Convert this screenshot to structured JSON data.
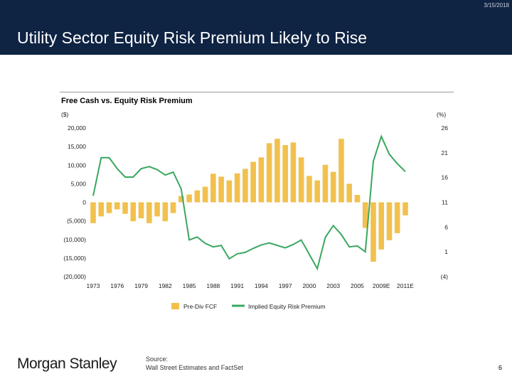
{
  "header": {
    "date": "3/15/2018",
    "title": "Utility Sector Equity Risk Premium Likely to Rise"
  },
  "footer": {
    "logo": "Morgan Stanley",
    "source_label": "Source:",
    "source_text": "Wall Street Estimates and FactSet",
    "page": "6"
  },
  "chart_data": {
    "type": "bar+line",
    "title": "Free Cash vs. Equity Risk Premium",
    "ylabel_left": "($)",
    "ylabel_right": "(%)",
    "ylim_left": [
      -20000,
      20000
    ],
    "ylim_right": [
      -4,
      26
    ],
    "left_ticks": [
      "20,000",
      "15,000",
      "10,000",
      "5,000",
      "0",
      "(5,000)",
      "(10,000)",
      "(15,000)",
      "(20,000)"
    ],
    "right_ticks": [
      "26",
      "21",
      "16",
      "11",
      "6",
      "1",
      "(4)"
    ],
    "x_tick_labels": [
      {
        "i": 0,
        "label": "1973"
      },
      {
        "i": 3,
        "label": "1976"
      },
      {
        "i": 6,
        "label": "1979"
      },
      {
        "i": 9,
        "label": "1982"
      },
      {
        "i": 12,
        "label": "1985"
      },
      {
        "i": 15,
        "label": "1988"
      },
      {
        "i": 18,
        "label": "1991"
      },
      {
        "i": 21,
        "label": "1994"
      },
      {
        "i": 24,
        "label": "1997"
      },
      {
        "i": 27,
        "label": "2000"
      },
      {
        "i": 30,
        "label": "2003"
      },
      {
        "i": 33,
        "label": "2005"
      },
      {
        "i": 36,
        "label": "2009E"
      },
      {
        "i": 39,
        "label": "2011E"
      }
    ],
    "series": [
      {
        "name": "Pre-Div FCF",
        "type": "bar",
        "axis": "left",
        "color": "#f2c04e",
        "values": [
          -5600,
          -3800,
          -2900,
          -1900,
          -3100,
          -5100,
          -4300,
          -5600,
          -3800,
          -5100,
          -2900,
          1700,
          2100,
          3200,
          4200,
          7700,
          6900,
          5900,
          7800,
          9000,
          10900,
          12100,
          15900,
          17100,
          15400,
          16100,
          12100,
          7100,
          5900,
          10100,
          8200,
          17100,
          5000,
          2000,
          -6900,
          -16000,
          -12700,
          -10200,
          -8300,
          -3500
        ]
      },
      {
        "name": "Implied Equity Risk Premium",
        "type": "line",
        "axis": "right",
        "color": "#3aa75f",
        "values": [
          12.3,
          20,
          20,
          17.8,
          16.1,
          16.1,
          17.8,
          18.2,
          17.6,
          16.5,
          17.1,
          13.7,
          3.4,
          4,
          2.7,
          2,
          2.3,
          -0.4,
          0.6,
          0.9,
          1.7,
          2.4,
          2.8,
          2.3,
          1.8,
          2.5,
          3.4,
          0.5,
          -2.4,
          3.9,
          6.3,
          4.5,
          2,
          2.2,
          1,
          19.3,
          24.3,
          20.7,
          18.8,
          17.2
        ]
      }
    ],
    "legend": "bottom"
  }
}
